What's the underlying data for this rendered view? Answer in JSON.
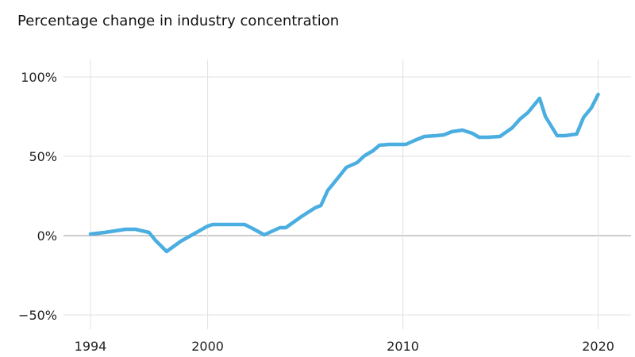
{
  "chart_data": {
    "type": "line",
    "title": "Percentage change in industry concentration",
    "xlabel": "",
    "ylabel": "",
    "xlim": [
      1994,
      2020
    ],
    "ylim": [
      -50,
      100
    ],
    "x_ticks": [
      1994,
      2000,
      2010,
      2020
    ],
    "x_tick_labels": [
      "1994",
      "2000",
      "2010",
      "2020"
    ],
    "y_ticks": [
      100,
      50,
      0,
      -50
    ],
    "y_tick_labels": [
      "100%",
      "50%",
      "0%",
      "−50%"
    ],
    "grid": true,
    "line_color": "#4baee0",
    "series": [
      {
        "x": [
          1994,
          1994.73,
          1995.8,
          1996.3,
          1997.0,
          1997.33,
          1997.9,
          1998.63,
          1999.5,
          2000,
          2000.25,
          2001.15,
          2001.9,
          2002.3,
          2002.9,
          2003.7,
          2004,
          2004.8,
          2005.5,
          2005.8,
          2006.15,
          2006.65,
          2007.1,
          2007.65,
          2008.05,
          2008.47,
          2008.8,
          2009.3,
          2010.15,
          2010.6,
          2011.1,
          2011.7,
          2012.1,
          2012.5,
          2013.05,
          2013.55,
          2013.9,
          2014.35,
          2014.97,
          2015.6,
          2016,
          2016.4,
          2017,
          2017.3,
          2017.9,
          2018.3,
          2018.9,
          2019.25,
          2019.65,
          2020
        ],
        "y": [
          1,
          2,
          4,
          4,
          2,
          -3,
          -10,
          -3.5,
          2.5,
          6,
          7,
          7,
          7,
          4.5,
          0.5,
          5,
          5,
          12,
          17.5,
          19,
          28.5,
          36,
          43,
          46,
          50.5,
          53.5,
          57,
          57.5,
          57.5,
          60,
          62.5,
          63,
          63.5,
          65.5,
          66.5,
          64.5,
          62,
          62,
          62.5,
          68,
          73.5,
          77.5,
          86.5,
          75,
          63,
          63,
          64,
          74.5,
          80.5,
          89
        ]
      }
    ]
  }
}
